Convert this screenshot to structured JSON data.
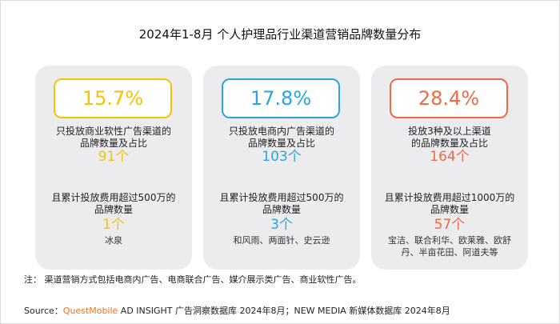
{
  "title": "2024年1-8月 个人护理品行业渠道营销品牌数量分布",
  "chart_data": {
    "type": "table",
    "cards": [
      {
        "percent": "15.7%",
        "desc": [
          "只投放商业软性广告渠道的",
          "品牌数量及占比"
        ],
        "count": "91个",
        "desc2": [
          "且累计投放费用超过500万的",
          "品牌数量"
        ],
        "count2": "1个",
        "brands": [
          "冰泉"
        ],
        "color": "#f5c400"
      },
      {
        "percent": "17.8%",
        "desc": [
          "只投放电商内广告渠道的",
          "品牌数量及占比"
        ],
        "count": "103个",
        "desc2": [
          "且累计投放费用超过500万的",
          "品牌数量"
        ],
        "count2": "3个",
        "brands": [
          "和风雨、两面针、史云逊"
        ],
        "color": "#2aa5e0"
      },
      {
        "percent": "28.4%",
        "desc": [
          "投放3种及以上渠道",
          "的品牌数量及占比"
        ],
        "count": "164个",
        "desc2": [
          "且累计投放费用超过1000万的",
          "品牌数量"
        ],
        "count2": "57个",
        "brands": [
          "宝洁、联合利华、欧莱雅、欧舒",
          "丹、半亩花田、阿道夫等"
        ],
        "color": "#f06a45"
      }
    ]
  },
  "note": "注：  渠道营销方式包括电商内广告、电商联合广告、媒介展示类广告、商业软性广告。",
  "source": {
    "prefix": "Source：",
    "brand": "QuestMobile",
    "text": " AD INSIGHT 广告洞察数据库 2024年8月；NEW MEDIA 新媒体数据库 2024年8月"
  }
}
